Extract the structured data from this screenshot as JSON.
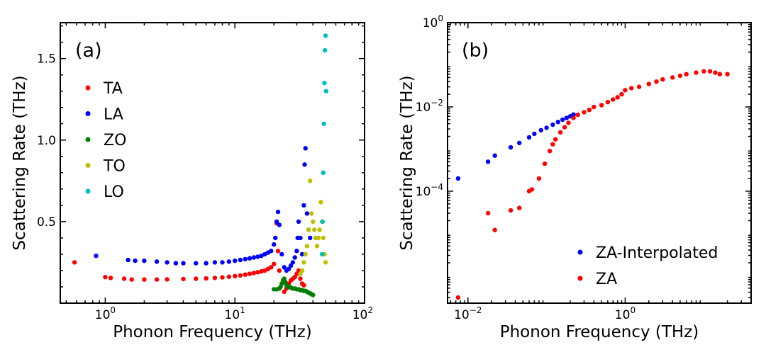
{
  "chart_data": [
    {
      "type": "scatter",
      "panel_label": "(a)",
      "xlabel": "Phonon Frequency (THz)",
      "ylabel": "Scattering Rate (THz)",
      "xscale": "log",
      "yscale": "linear",
      "xlim": [
        0.45,
        100
      ],
      "ylim": [
        0.0,
        1.72
      ],
      "x_ticks": [
        {
          "value": 1,
          "base": "10",
          "exp": "0"
        },
        {
          "value": 10,
          "base": "10",
          "exp": "1"
        },
        {
          "value": 100,
          "base": "10",
          "exp": "2"
        }
      ],
      "y_ticks": [
        {
          "value": 0.5,
          "label": "0.5"
        },
        {
          "value": 1.0,
          "label": "1.0"
        },
        {
          "value": 1.5,
          "label": "1.5"
        }
      ],
      "legend_position": "upper-left",
      "series": [
        {
          "name": "TA",
          "color": "#ff0000",
          "x": [
            0.58,
            1.0,
            1.1,
            1.4,
            1.6,
            2.0,
            2.5,
            3.0,
            4.0,
            5.0,
            6.0,
            7.0,
            8.0,
            9.0,
            10.0,
            11.0,
            12.0,
            13.0,
            14.0,
            15.0,
            16.0,
            17.0,
            18.0,
            19.0,
            20.0,
            21.0,
            21.5,
            22.0,
            23.0,
            24.0,
            25.0,
            26.0,
            27.0,
            28.0,
            29.0,
            30.0,
            31.0,
            32.0,
            33.0,
            34.0
          ],
          "y": [
            0.25,
            0.16,
            0.155,
            0.15,
            0.145,
            0.145,
            0.145,
            0.146,
            0.148,
            0.15,
            0.152,
            0.155,
            0.158,
            0.162,
            0.166,
            0.17,
            0.175,
            0.18,
            0.185,
            0.19,
            0.195,
            0.2,
            0.21,
            0.22,
            0.24,
            0.49,
            0.32,
            0.2,
            0.12,
            0.07,
            0.09,
            0.12,
            0.14,
            0.15,
            0.16,
            0.18,
            0.2,
            0.15,
            0.12,
            0.11
          ]
        },
        {
          "name": "LA",
          "color": "#0000ff",
          "x": [
            0.85,
            1.5,
            1.7,
            2.0,
            2.5,
            3.0,
            3.5,
            4.0,
            5.0,
            6.0,
            7.0,
            8.0,
            9.0,
            10.0,
            11.0,
            12.0,
            13.0,
            14.0,
            15.0,
            16.0,
            17.0,
            18.0,
            19.0,
            20.0,
            20.5,
            21.0,
            21.5,
            22.0,
            23.0,
            24.0,
            25.0,
            26.0,
            27.0,
            28.0,
            29.0,
            30.0,
            30.5,
            31.0,
            32.0,
            33.0,
            34.0,
            34.5,
            35.0,
            36.0,
            37.0,
            38.0
          ],
          "y": [
            0.29,
            0.265,
            0.26,
            0.26,
            0.255,
            0.25,
            0.245,
            0.245,
            0.245,
            0.245,
            0.25,
            0.25,
            0.255,
            0.26,
            0.265,
            0.27,
            0.275,
            0.28,
            0.285,
            0.29,
            0.3,
            0.31,
            0.32,
            0.36,
            0.4,
            0.5,
            0.56,
            0.48,
            0.3,
            0.22,
            0.2,
            0.21,
            0.23,
            0.25,
            0.28,
            0.32,
            0.4,
            0.5,
            0.4,
            0.3,
            0.6,
            0.85,
            0.95,
            0.55,
            0.45,
            0.4
          ]
        },
        {
          "name": "ZO",
          "color": "#007f00",
          "x": [
            20.0,
            21.0,
            22.0,
            22.5,
            23.0,
            23.5,
            24.0,
            24.5,
            25.0,
            25.5,
            26.0,
            27.0,
            28.0,
            29.0,
            30.0,
            31.0,
            32.0,
            33.0,
            34.0,
            35.0,
            36.0,
            37.0,
            38.0,
            39.0,
            40.0
          ],
          "y": [
            0.085,
            0.085,
            0.09,
            0.1,
            0.12,
            0.14,
            0.15,
            0.13,
            0.11,
            0.1,
            0.1,
            0.095,
            0.09,
            0.09,
            0.085,
            0.085,
            0.08,
            0.08,
            0.075,
            0.075,
            0.07,
            0.065,
            0.06,
            0.055,
            0.05
          ]
        },
        {
          "name": "TO",
          "color": "#bfbf00",
          "x": [
            32.0,
            33.0,
            34.0,
            35.0,
            36.0,
            37.0,
            38.0,
            39.0,
            40.0,
            41.0,
            42.0,
            43.0,
            44.0,
            45.0,
            46.0,
            47.0,
            48.0,
            49.0,
            50.0
          ],
          "y": [
            0.18,
            0.2,
            0.25,
            0.3,
            0.35,
            0.45,
            0.75,
            0.55,
            0.5,
            0.45,
            0.4,
            0.35,
            0.4,
            0.45,
            0.62,
            0.5,
            0.4,
            0.3,
            0.25
          ]
        },
        {
          "name": "LO",
          "color": "#00bfbf",
          "x": [
            47.0,
            47.5,
            48.0,
            48.5,
            49.0,
            49.5,
            50.0,
            50.5
          ],
          "y": [
            0.3,
            0.5,
            0.8,
            1.1,
            1.35,
            1.55,
            1.64,
            1.3
          ]
        }
      ]
    },
    {
      "type": "scatter",
      "panel_label": "(b)",
      "xlabel": "Phonon Frequency (THz)",
      "ylabel": "Scattering Rate (THz)",
      "xscale": "log",
      "yscale": "log",
      "xlim": [
        0.0055,
        40
      ],
      "ylim": [
        2.2e-07,
        1.0
      ],
      "x_ticks": [
        {
          "value": 0.01,
          "base": "10",
          "exp": "−2"
        },
        {
          "value": 1,
          "base": "10",
          "exp": "0"
        }
      ],
      "y_ticks": [
        {
          "value": 0.0001,
          "base": "10",
          "exp": "−4"
        },
        {
          "value": 0.01,
          "base": "10",
          "exp": "−2"
        },
        {
          "value": 1,
          "base": "10",
          "exp": "0"
        }
      ],
      "legend_position": "lower-right",
      "series": [
        {
          "name": "ZA-Interpolated",
          "color": "#0000ff",
          "x": [
            0.0075,
            0.018,
            0.022,
            0.035,
            0.045,
            0.06,
            0.07,
            0.085,
            0.1,
            0.12,
            0.14,
            0.16,
            0.18,
            0.2,
            0.22
          ],
          "y": [
            0.0002,
            0.0005,
            0.0007,
            0.0011,
            0.0014,
            0.0019,
            0.0023,
            0.0028,
            0.0032,
            0.0038,
            0.0044,
            0.005,
            0.0055,
            0.006,
            0.0066
          ]
        },
        {
          "name": "ZA",
          "color": "#ff0000",
          "x": [
            0.0075,
            0.018,
            0.022,
            0.035,
            0.045,
            0.06,
            0.065,
            0.08,
            0.095,
            0.11,
            0.12,
            0.13,
            0.15,
            0.17,
            0.19,
            0.22,
            0.25,
            0.3,
            0.35,
            0.4,
            0.5,
            0.6,
            0.7,
            0.8,
            0.9,
            1.0,
            1.2,
            1.5,
            2.0,
            2.5,
            3.0,
            4.0,
            5.0,
            6.0,
            8.0,
            10.0,
            12.0,
            14.0,
            16.0,
            20.0
          ],
          "y": [
            3e-07,
            3e-05,
            1.2e-05,
            3.5e-05,
            4e-05,
            0.0001,
            0.00011,
            0.0002,
            0.00045,
            0.0009,
            0.0013,
            0.0017,
            0.0025,
            0.0033,
            0.0042,
            0.0055,
            0.0065,
            0.0075,
            0.0085,
            0.01,
            0.011,
            0.013,
            0.015,
            0.017,
            0.02,
            0.025,
            0.028,
            0.03,
            0.035,
            0.04,
            0.045,
            0.05,
            0.055,
            0.06,
            0.065,
            0.07,
            0.07,
            0.065,
            0.06,
            0.06
          ]
        }
      ]
    }
  ]
}
